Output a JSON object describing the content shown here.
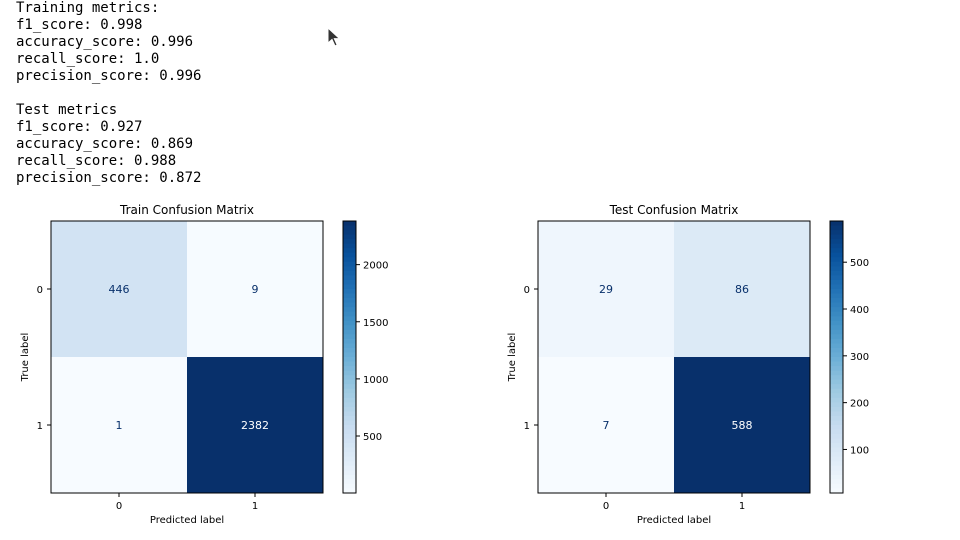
{
  "output": {
    "train_header": "Training metrics:",
    "train_lines": [
      "f1_score: 0.998",
      "accuracy_score: 0.996",
      "recall_score: 1.0",
      "precision_score: 0.996"
    ],
    "test_header": "Test metrics",
    "test_lines": [
      "f1_score: 0.927",
      "accuracy_score: 0.869",
      "recall_score: 0.988",
      "precision_score: 0.872"
    ]
  },
  "chart_data": [
    {
      "type": "heatmap",
      "title": "Train Confusion Matrix",
      "xlabel": "Predicted label",
      "ylabel": "True label",
      "x_ticks": [
        "0",
        "1"
      ],
      "y_ticks": [
        "0",
        "1"
      ],
      "matrix": [
        [
          446,
          9
        ],
        [
          1,
          2382
        ]
      ],
      "colormap": "Blues",
      "colorbar": {
        "min": 1,
        "max": 2382,
        "ticks": [
          500,
          1000,
          1500,
          2000
        ],
        "tick_labels": [
          "500",
          "1000",
          "1500",
          "2000"
        ]
      }
    },
    {
      "type": "heatmap",
      "title": "Test Confusion Matrix",
      "xlabel": "Predicted label",
      "ylabel": "True label",
      "x_ticks": [
        "0",
        "1"
      ],
      "y_ticks": [
        "0",
        "1"
      ],
      "matrix": [
        [
          29,
          86
        ],
        [
          7,
          588
        ]
      ],
      "colormap": "Blues",
      "colorbar": {
        "min": 7,
        "max": 588,
        "ticks": [
          100,
          200,
          300,
          400,
          500
        ],
        "tick_labels": [
          "100",
          "200",
          "300",
          "400",
          "500"
        ]
      }
    }
  ]
}
